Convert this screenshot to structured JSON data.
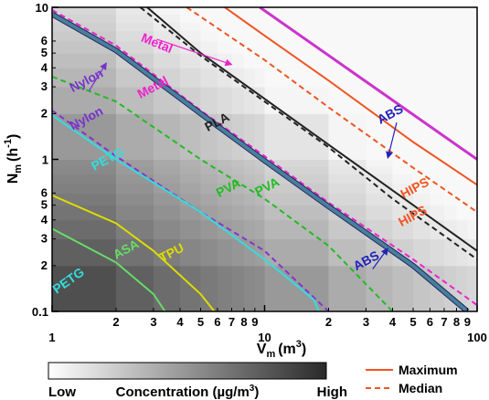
{
  "chart_data": {
    "type": "heatmap",
    "x_axis": {
      "label": "V",
      "label_sub": "m",
      "label_unit": "(m",
      "label_unit_sup": "3",
      "label_unit_close": ")",
      "scale": "log",
      "range": [
        1,
        100
      ],
      "major_ticks": [
        {
          "v": 1,
          "label": "1"
        },
        {
          "v": 10,
          "label": "10"
        },
        {
          "v": 100,
          "label": "100"
        }
      ],
      "minor_ticks": [
        {
          "v": 2,
          "label": "2"
        },
        {
          "v": 3,
          "label": "3"
        },
        {
          "v": 4,
          "label": "4"
        },
        {
          "v": 5,
          "label": "5"
        },
        {
          "v": 6,
          "label": "6"
        },
        {
          "v": 7,
          "label": "7"
        },
        {
          "v": 8,
          "label": "8"
        },
        {
          "v": 9,
          "label": "9"
        },
        {
          "v": 20,
          "label": "2"
        },
        {
          "v": 30,
          "label": "3"
        },
        {
          "v": 40,
          "label": "4"
        },
        {
          "v": 50,
          "label": "5"
        },
        {
          "v": 60,
          "label": "6"
        },
        {
          "v": 70,
          "label": "7"
        },
        {
          "v": 80,
          "label": "8"
        },
        {
          "v": 90,
          "label": "9"
        }
      ]
    },
    "y_axis": {
      "label": "N",
      "label_sub": "m",
      "label_unit": "(h",
      "label_unit_sup": "-1",
      "label_unit_close": ")",
      "scale": "log",
      "range": [
        0.1,
        10
      ],
      "major_ticks": [
        {
          "v": 0.1,
          "label": "0.1"
        },
        {
          "v": 1,
          "label": "1"
        },
        {
          "v": 10,
          "label": "10"
        }
      ],
      "minor_ticks": [
        {
          "v": 0.2,
          "label": "2"
        },
        {
          "v": 0.3,
          "label": "3"
        },
        {
          "v": 0.4,
          "label": "4"
        },
        {
          "v": 0.5,
          "label": "5"
        },
        {
          "v": 0.6,
          "label": "6"
        },
        {
          "v": 2,
          "label": "2"
        },
        {
          "v": 3,
          "label": "3"
        },
        {
          "v": 4,
          "label": "4"
        },
        {
          "v": 5,
          "label": "5"
        },
        {
          "v": 6,
          "label": "6"
        }
      ]
    },
    "heatmap_note": "background shaded by concentration, darkest at low V and low N",
    "series": [
      {
        "name": "ABS",
        "stat": "Maximum",
        "color": "#cc33cc",
        "style": "solid",
        "width": 3,
        "points": [
          [
            9.5,
            10
          ],
          [
            100,
            1.0
          ]
        ]
      },
      {
        "name": "HIPS",
        "stat": "Maximum",
        "color": "#ee5522",
        "style": "solid",
        "width": 2,
        "points": [
          [
            6.5,
            10
          ],
          [
            10,
            6.5
          ],
          [
            20,
            3.3
          ],
          [
            50,
            1.3
          ],
          [
            100,
            0.68
          ]
        ]
      },
      {
        "name": "HIPS",
        "stat": "Median",
        "color": "#ee5522",
        "style": "dashed",
        "width": 2,
        "points": [
          [
            4.3,
            10
          ],
          [
            10,
            4.5
          ],
          [
            20,
            2.2
          ],
          [
            50,
            0.88
          ],
          [
            100,
            0.45
          ]
        ]
      },
      {
        "name": "PLA",
        "stat": "Maximum",
        "color": "#222222",
        "style": "solid",
        "width": 2,
        "points": [
          [
            2.8,
            10
          ],
          [
            5,
            5.0
          ],
          [
            10,
            2.5
          ],
          [
            20,
            1.25
          ],
          [
            50,
            0.5
          ],
          [
            100,
            0.25
          ]
        ]
      },
      {
        "name": "PLA",
        "stat": "Median",
        "color": "#222222",
        "style": "dashed",
        "width": 2,
        "points": [
          [
            2.6,
            10
          ],
          [
            5,
            4.8
          ],
          [
            10,
            2.4
          ],
          [
            20,
            1.2
          ],
          [
            40,
            0.55
          ],
          [
            100,
            0.22
          ]
        ]
      },
      {
        "name": "Metal",
        "stat": "Maximum",
        "color": "#ee22cc",
        "style": "dashed",
        "width": 2,
        "points": [
          [
            1,
            9.6
          ],
          [
            2,
            5.6
          ],
          [
            5,
            2.1
          ],
          [
            10,
            1.05
          ],
          [
            20,
            0.52
          ],
          [
            50,
            0.22
          ],
          [
            100,
            0.11
          ]
        ]
      },
      {
        "name": "Nylon",
        "stat": "Maximum",
        "color": "#4a7f99",
        "style": "solid",
        "width": 4,
        "points": [
          [
            1,
            9.0
          ],
          [
            2,
            5.2
          ],
          [
            5,
            2.0
          ],
          [
            10,
            0.98
          ],
          [
            20,
            0.49
          ],
          [
            50,
            0.2
          ],
          [
            90,
            0.1
          ]
        ]
      },
      {
        "name": "PVA",
        "stat": "Median",
        "color": "#22bb22",
        "style": "dashed",
        "width": 2,
        "points": [
          [
            1,
            3.5
          ],
          [
            2,
            2.4
          ],
          [
            5,
            1.0
          ],
          [
            10,
            0.55
          ],
          [
            20,
            0.27
          ],
          [
            40,
            0.1
          ]
        ]
      },
      {
        "name": "Nylon",
        "stat": "Median",
        "color": "#8833cc",
        "style": "dashed",
        "width": 2,
        "points": [
          [
            1,
            2.1
          ],
          [
            2,
            1.05
          ],
          [
            5,
            0.45
          ],
          [
            10,
            0.25
          ],
          [
            20,
            0.1
          ]
        ]
      },
      {
        "name": "PETG",
        "stat": "Maximum",
        "color": "#33dddd",
        "style": "solid",
        "width": 2,
        "points": [
          [
            1,
            1.95
          ],
          [
            2,
            1.0
          ],
          [
            5,
            0.45
          ],
          [
            10,
            0.22
          ],
          [
            17,
            0.12
          ],
          [
            18,
            0.1
          ]
        ]
      },
      {
        "name": "TPU",
        "stat": "Maximum",
        "color": "#dddd00",
        "style": "solid",
        "width": 2,
        "points": [
          [
            1,
            0.58
          ],
          [
            2,
            0.38
          ],
          [
            3,
            0.25
          ],
          [
            5,
            0.13
          ],
          [
            5.8,
            0.1
          ]
        ]
      },
      {
        "name": "ASA",
        "stat": "Maximum",
        "color": "#66dd66",
        "style": "solid",
        "width": 2,
        "points": [
          [
            1,
            0.35
          ],
          [
            2,
            0.21
          ],
          [
            3,
            0.13
          ],
          [
            3.4,
            0.1
          ]
        ]
      }
    ],
    "annotations": [
      {
        "text": "Metal",
        "color": "#ee22cc",
        "at": [
          2.6,
          6.0
        ],
        "rot": 22,
        "arrow_to": [
          7,
          4.2
        ]
      },
      {
        "text": "Nylon",
        "color": "#7733cc",
        "at": [
          1.25,
          2.75
        ],
        "rot": -28,
        "arrow_to": [
          1.8,
          4.3
        ]
      },
      {
        "text": "Metal",
        "color": "#ee22cc",
        "at": [
          2.6,
          2.5
        ],
        "rot": -28
      },
      {
        "text": "Nylon",
        "color": "#7733cc",
        "at": [
          1.25,
          1.55
        ],
        "rot": -28
      },
      {
        "text": "PLA",
        "color": "#222222",
        "at": [
          5.4,
          1.52
        ],
        "rot": -28
      },
      {
        "text": "ABS",
        "color": "#2222bb",
        "at": [
          35,
          1.7
        ],
        "rot": -28,
        "arrow_to": [
          38,
          1.02
        ]
      },
      {
        "text": "PETG",
        "color": "#33dddd",
        "at": [
          1.58,
          0.84
        ],
        "rot": -28
      },
      {
        "text": "PVA",
        "color": "#22bb22",
        "at": [
          6.1,
          0.56
        ],
        "rot": -28
      },
      {
        "text": "PVA",
        "color": "#22bb22",
        "at": [
          9.3,
          0.57
        ],
        "rot": -28
      },
      {
        "text": "HIPS",
        "color": "#ee5522",
        "at": [
          45,
          0.55
        ],
        "rot": -28
      },
      {
        "text": "HIPS",
        "color": "#ee5522",
        "at": [
          44,
          0.36
        ],
        "rot": -28
      },
      {
        "text": "ABS",
        "color": "#2222bb",
        "at": [
          27,
          0.185
        ],
        "rot": -28,
        "arrow_to": [
          38,
          0.26
        ]
      },
      {
        "text": "ASA",
        "color": "#66dd66",
        "at": [
          2.0,
          0.22
        ],
        "rot": -28
      },
      {
        "text": "TPU",
        "color": "#dddd00",
        "at": [
          3.3,
          0.21
        ],
        "rot": -28
      },
      {
        "text": "PETG",
        "color": "#33dddd",
        "at": [
          1.05,
          0.13
        ],
        "rot": -35
      }
    ],
    "legend": {
      "placement": "bottom-right",
      "items": [
        {
          "label": "Maximum",
          "color": "#ee5522",
          "style": "solid"
        },
        {
          "label": "Median",
          "color": "#ee5522",
          "style": "dashed"
        }
      ]
    },
    "colorbar": {
      "placement": "bottom-left",
      "low_label": "Low",
      "title": "Concentration (µg/m",
      "title_sup": "3",
      "title_close": ")",
      "high_label": "High"
    }
  }
}
